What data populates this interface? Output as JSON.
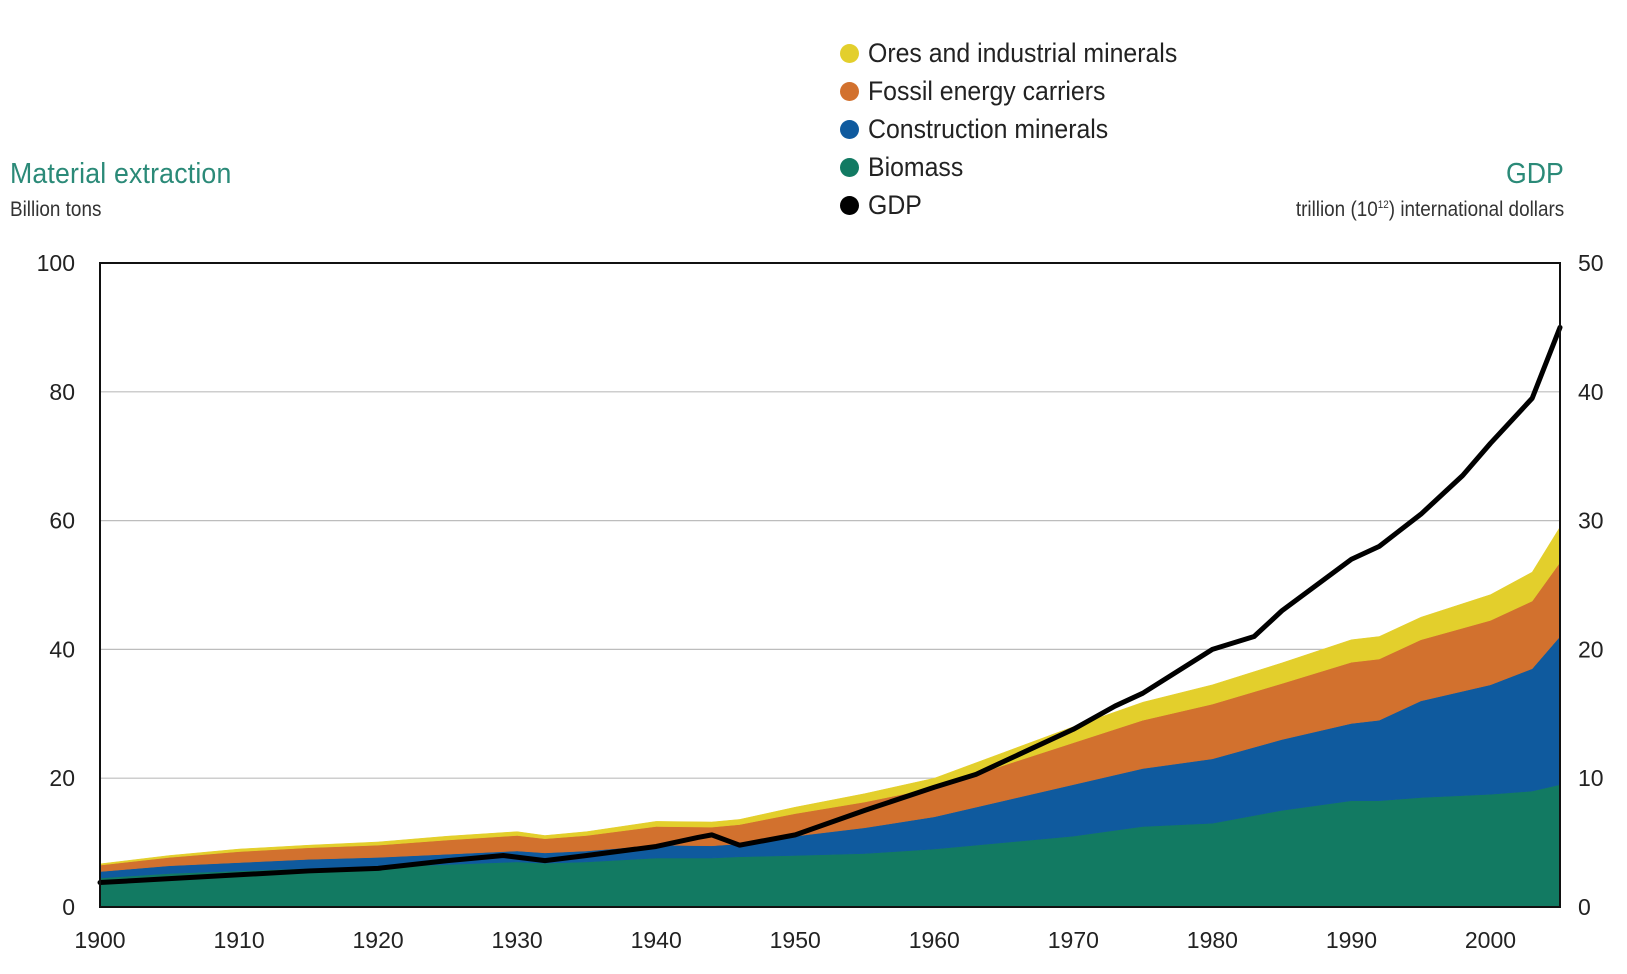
{
  "left_axis": {
    "title": "Material extraction",
    "unit": "Billion tons"
  },
  "right_axis": {
    "title": "GDP",
    "unit_prefix": "trillion (10",
    "unit_sup": "12",
    "unit_suffix": ") international dollars"
  },
  "legend": [
    {
      "label": "Ores and industrial minerals",
      "color": "#e3cf2c"
    },
    {
      "label": "Fossil energy carriers",
      "color": "#d2712e"
    },
    {
      "label": "Construction minerals",
      "color": "#0f5a9e"
    },
    {
      "label": "Biomass",
      "color": "#127a62"
    },
    {
      "label": "GDP",
      "color": "#000000"
    }
  ],
  "chart_data": {
    "type": "area",
    "x_ticks": [
      "1900",
      "1910",
      "1920",
      "1930",
      "1940",
      "1950",
      "1960",
      "1970",
      "1980",
      "1990",
      "2000"
    ],
    "y_left_ticks": [
      "0",
      "20",
      "40",
      "60",
      "80",
      "100"
    ],
    "y_right_ticks": [
      "0",
      "10",
      "20",
      "30",
      "40",
      "50"
    ],
    "xlim": [
      1900,
      2005
    ],
    "ylim_left": [
      0,
      100
    ],
    "ylim_right": [
      0,
      50
    ],
    "grid": true,
    "legend_position": "top-center",
    "x": [
      1900,
      1905,
      1910,
      1915,
      1920,
      1925,
      1930,
      1932,
      1935,
      1940,
      1944,
      1946,
      1950,
      1955,
      1960,
      1965,
      1970,
      1975,
      1980,
      1985,
      1990,
      1992,
      1995,
      2000,
      2003,
      2005
    ],
    "stack_series": [
      {
        "name": "Biomass",
        "color": "#127a62",
        "values": [
          4.5,
          5.2,
          5.6,
          6.0,
          6.2,
          6.6,
          7.0,
          6.8,
          7.0,
          7.6,
          7.6,
          7.8,
          8.0,
          8.3,
          9.0,
          10.0,
          11.0,
          12.5,
          13.0,
          15.0,
          16.5,
          16.5,
          17.0,
          17.5,
          18.0,
          19.0
        ]
      },
      {
        "name": "Construction minerals",
        "color": "#0f5a9e",
        "values": [
          1.0,
          1.2,
          1.3,
          1.4,
          1.5,
          1.6,
          1.7,
          1.6,
          1.7,
          2.0,
          1.9,
          2.0,
          3.0,
          4.0,
          5.0,
          6.5,
          8.0,
          9.0,
          10.0,
          11.0,
          12.0,
          12.5,
          15.0,
          17.0,
          19.0,
          23.0
        ]
      },
      {
        "name": "Fossil energy carriers",
        "color": "#d2712e",
        "values": [
          1.0,
          1.3,
          1.7,
          1.8,
          1.9,
          2.2,
          2.4,
          2.2,
          2.4,
          2.9,
          2.9,
          3.0,
          3.5,
          4.0,
          4.5,
          5.5,
          6.5,
          7.5,
          8.5,
          8.7,
          9.5,
          9.5,
          9.5,
          10.0,
          10.5,
          11.5
        ]
      },
      {
        "name": "Ores and industrial minerals",
        "color": "#e3cf2c",
        "values": [
          0.2,
          0.3,
          0.4,
          0.4,
          0.5,
          0.6,
          0.6,
          0.5,
          0.6,
          0.8,
          0.8,
          0.8,
          1.0,
          1.3,
          1.5,
          2.0,
          2.5,
          2.8,
          3.0,
          3.2,
          3.5,
          3.5,
          3.5,
          4.0,
          4.5,
          5.5
        ]
      }
    ],
    "line_series": {
      "name": "GDP",
      "color": "#000000",
      "axis": "right",
      "x": [
        1900,
        1905,
        1910,
        1915,
        1920,
        1925,
        1929,
        1932,
        1935,
        1940,
        1943,
        1944,
        1946,
        1950,
        1955,
        1960,
        1963,
        1967,
        1970,
        1973,
        1975,
        1980,
        1983,
        1985,
        1990,
        1992,
        1995,
        1998,
        2000,
        2003,
        2005
      ],
      "values": [
        1.9,
        2.2,
        2.5,
        2.8,
        3.0,
        3.6,
        4.0,
        3.6,
        4.0,
        4.7,
        5.4,
        5.6,
        4.8,
        5.6,
        7.5,
        9.3,
        10.3,
        12.3,
        13.8,
        15.6,
        16.6,
        20.0,
        21.0,
        23.0,
        27.0,
        28.0,
        30.5,
        33.5,
        36.0,
        39.5,
        45.0
      ]
    }
  }
}
